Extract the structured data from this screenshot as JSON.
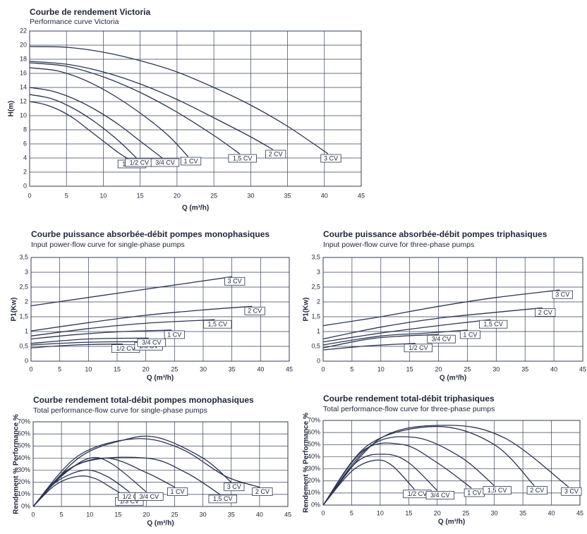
{
  "chart_data": [
    {
      "type": "line",
      "title": "Courbe de rendement Victoria",
      "subtitle": "Performance curve Victoria",
      "xlabel": "Q (m³/h)",
      "ylabel": "H(m)",
      "xlim": [
        0,
        45
      ],
      "ylim": [
        0,
        22
      ],
      "xticks": [
        0,
        5,
        10,
        15,
        20,
        25,
        30,
        35,
        40,
        45
      ],
      "yticks": [
        0,
        2,
        4,
        6,
        8,
        10,
        12,
        14,
        16,
        18,
        20,
        22
      ],
      "grid": true,
      "color": "#2b3552",
      "series": [
        {
          "name": "1/3 CV",
          "x": [
            0,
            2,
            4,
            6,
            8,
            10,
            12,
            13.5
          ],
          "values": [
            12,
            11.6,
            10.8,
            9.6,
            8,
            6.4,
            4.8,
            3.8
          ]
        },
        {
          "name": "1/2 CV",
          "x": [
            0,
            3,
            6,
            9,
            12,
            14.5
          ],
          "values": [
            13,
            12.4,
            11,
            9,
            6.5,
            4
          ]
        },
        {
          "name": "3/4 CV",
          "x": [
            0,
            3,
            6,
            9,
            12,
            15,
            18
          ],
          "values": [
            14,
            13.5,
            12.4,
            10.8,
            8.8,
            6.4,
            4
          ]
        },
        {
          "name": "1 CV",
          "x": [
            0,
            4,
            8,
            12,
            16,
            19,
            21.5
          ],
          "values": [
            16.8,
            16.3,
            14.8,
            12.5,
            9.6,
            7,
            4.2
          ]
        },
        {
          "name": "1,5 CV",
          "x": [
            0,
            5,
            10,
            15,
            20,
            25,
            28.5
          ],
          "values": [
            17.5,
            17,
            15.5,
            13.3,
            10.5,
            7.2,
            4.6
          ]
        },
        {
          "name": "2 CV",
          "x": [
            0,
            5,
            10,
            15,
            20,
            25,
            30,
            33
          ],
          "values": [
            17.7,
            17.3,
            16.2,
            14.5,
            12.3,
            9.7,
            7,
            5.2
          ]
        },
        {
          "name": "3 CV",
          "x": [
            0,
            5,
            10,
            15,
            20,
            25,
            30,
            35,
            40.5
          ],
          "values": [
            19.8,
            19.7,
            19,
            17.8,
            16.2,
            14,
            11.5,
            8.5,
            4.6
          ]
        }
      ]
    },
    {
      "type": "line",
      "title": "Courbe puissance absorbée-débit pompes monophasiques",
      "subtitle": "Input power-flow curve for single-phase pumps",
      "xlabel": "Q (m³/h)",
      "ylabel": "P1(Kw)",
      "xlim": [
        0,
        45
      ],
      "ylim": [
        0,
        3.5
      ],
      "xticks": [
        0,
        5,
        10,
        15,
        20,
        25,
        30,
        35,
        40,
        45
      ],
      "yticks": [
        0,
        {
          "value": 0.5,
          "label": "0,5"
        },
        1,
        {
          "value": 1.5,
          "label": "1,5"
        },
        2,
        {
          "value": 2.5,
          "label": "2,5"
        },
        3,
        {
          "value": 3.5,
          "label": "3,5"
        }
      ],
      "grid": true,
      "color": "#2b3552",
      "series": [
        {
          "name": "1/2 CV",
          "x": [
            0,
            8,
            16
          ],
          "values": [
            0.45,
            0.55,
            0.58
          ]
        },
        {
          "name": "1/3 CV",
          "x": [
            0,
            10,
            20
          ],
          "values": [
            0.55,
            0.64,
            0.66
          ]
        },
        {
          "name": "3/4 CV",
          "x": [
            0,
            10,
            20.5
          ],
          "values": [
            0.6,
            0.75,
            0.78
          ]
        },
        {
          "name": "1 CV",
          "x": [
            0,
            8,
            16,
            24.5
          ],
          "values": [
            0.75,
            0.9,
            1,
            1.05
          ]
        },
        {
          "name": "1,5 CV",
          "x": [
            0,
            10,
            20,
            32
          ],
          "values": [
            0.85,
            1.1,
            1.28,
            1.4
          ]
        },
        {
          "name": "2 CV",
          "x": [
            0,
            10,
            20,
            30,
            38.5
          ],
          "values": [
            1.02,
            1.3,
            1.55,
            1.73,
            1.85
          ]
        },
        {
          "name": "3 CV",
          "x": [
            0,
            35
          ],
          "values": [
            1.87,
            2.85
          ]
        }
      ]
    },
    {
      "type": "line",
      "title": "Courbe puissance absorbée-débit pompes triphasiques",
      "subtitle": "Input power-flow curve for three-phase pumps",
      "xlabel": "Q (m³/h)",
      "ylabel": "P1(Kw)",
      "xlim": [
        0,
        45
      ],
      "ylim": [
        0,
        3.5
      ],
      "xticks": [
        0,
        5,
        10,
        15,
        20,
        25,
        30,
        35,
        40,
        45
      ],
      "yticks": [
        0,
        {
          "value": 0.5,
          "label": "0,5"
        },
        1,
        {
          "value": 1.5,
          "label": "1,5"
        },
        2,
        {
          "value": 2.5,
          "label": "2,5"
        },
        3,
        {
          "value": 3.5,
          "label": "3,5"
        }
      ],
      "grid": true,
      "color": "#2b3552",
      "series": [
        {
          "name": "1/2 CV",
          "x": [
            0,
            8,
            16
          ],
          "values": [
            0.38,
            0.52,
            0.6
          ]
        },
        {
          "name": "3/4 CV",
          "x": [
            0,
            8,
            14,
            20
          ],
          "values": [
            0.45,
            0.75,
            0.85,
            0.9
          ]
        },
        {
          "name": "1 CV",
          "x": [
            0,
            10,
            18,
            25
          ],
          "values": [
            0.55,
            0.85,
            0.95,
            1.05
          ]
        },
        {
          "name": "1,5 CV",
          "x": [
            0,
            10,
            20,
            29
          ],
          "values": [
            0.65,
            0.95,
            1.2,
            1.4
          ]
        },
        {
          "name": "2 CV",
          "x": [
            0,
            10,
            20,
            30,
            38
          ],
          "values": [
            0.75,
            1.15,
            1.45,
            1.65,
            1.8
          ]
        },
        {
          "name": "3 CV",
          "x": [
            0,
            10,
            20,
            30,
            41
          ],
          "values": [
            1.2,
            1.5,
            1.85,
            2.15,
            2.4
          ]
        }
      ]
    },
    {
      "type": "line",
      "title": "Courbe rendement total-débit pompes monophasiques",
      "subtitle": "Total performance-flow curve for single-phase pumps",
      "xlabel": "Q (m³/h)",
      "ylabel": "Rendement % Performance %",
      "xlim": [
        0,
        45
      ],
      "ylim": [
        0,
        70
      ],
      "xticks": [
        0,
        5,
        10,
        15,
        20,
        25,
        30,
        35,
        40,
        45
      ],
      "yticks": [
        {
          "value": 0,
          "label": "0%"
        },
        {
          "value": 10,
          "label": "10%"
        },
        {
          "value": 20,
          "label": "20%"
        },
        {
          "value": 30,
          "label": "30%"
        },
        {
          "value": 40,
          "label": "40%"
        },
        {
          "value": 50,
          "label": "50%"
        },
        {
          "value": 60,
          "label": "60%"
        },
        {
          "value": 70,
          "label": "70%"
        }
      ],
      "grid": true,
      "color": "#2b3552",
      "series": [
        {
          "name": "1/3 CV",
          "x": [
            0,
            4,
            8,
            11,
            14,
            16.5
          ],
          "values": [
            0,
            18,
            25,
            23,
            15,
            8
          ]
        },
        {
          "name": "1/2 CV",
          "x": [
            0,
            4,
            9,
            13,
            17
          ],
          "values": [
            0,
            20,
            30,
            25,
            12
          ]
        },
        {
          "name": "3/4 CV",
          "x": [
            0,
            5,
            10,
            14,
            20
          ],
          "values": [
            0,
            25,
            40,
            35,
            12
          ]
        },
        {
          "name": "1 CV",
          "x": [
            0,
            6,
            13,
            20,
            25
          ],
          "values": [
            0,
            30,
            40,
            28,
            16
          ]
        },
        {
          "name": "1,5 CV",
          "x": [
            0,
            8,
            20,
            27,
            33
          ],
          "values": [
            0,
            35,
            40,
            28,
            10
          ]
        },
        {
          "name": "3 CV",
          "x": [
            0,
            8,
            16,
            22,
            30,
            35
          ],
          "values": [
            0,
            40,
            55,
            57,
            40,
            20
          ]
        },
        {
          "name": "2 CV",
          "x": [
            0,
            8,
            18,
            26,
            34,
            40
          ],
          "values": [
            0,
            42,
            56,
            48,
            25,
            16
          ]
        }
      ]
    },
    {
      "type": "line",
      "title": "Courbe rendement total-débit triphasiques",
      "subtitle": "Total performance-flow curve for three-phase pumps",
      "xlabel": "Q (m³/h)",
      "ylabel": "Rendement % Performance %",
      "xlim": [
        0,
        45
      ],
      "ylim": [
        0,
        70
      ],
      "xticks": [
        0,
        5,
        10,
        15,
        20,
        25,
        30,
        35,
        40,
        45
      ],
      "yticks": [
        {
          "value": 0,
          "label": "0%"
        },
        {
          "value": 10,
          "label": "10%"
        },
        {
          "value": 20,
          "label": "20%"
        },
        {
          "value": 30,
          "label": "30%"
        },
        {
          "value": 40,
          "label": "40%"
        },
        {
          "value": 50,
          "label": "50%"
        },
        {
          "value": 60,
          "label": "60%"
        },
        {
          "value": 70,
          "label": "70%"
        }
      ],
      "grid": true,
      "color": "#2b3552",
      "series": [
        {
          "name": "1/2 CV",
          "x": [
            0,
            5,
            9,
            12,
            16
          ],
          "values": [
            0,
            28,
            37,
            33,
            13
          ]
        },
        {
          "name": "3/4 CV",
          "x": [
            0,
            6,
            11,
            15,
            20
          ],
          "values": [
            0,
            36,
            42,
            35,
            12
          ]
        },
        {
          "name": "1 CV",
          "x": [
            0,
            7,
            14,
            20,
            26
          ],
          "values": [
            0,
            45,
            50,
            35,
            14
          ]
        },
        {
          "name": "1,5 CV",
          "x": [
            0,
            8,
            16,
            24,
            30
          ],
          "values": [
            0,
            48,
            56,
            40,
            16
          ]
        },
        {
          "name": "2 CV",
          "x": [
            0,
            8,
            20,
            30,
            37
          ],
          "values": [
            0,
            50,
            65,
            50,
            16
          ]
        },
        {
          "name": "3 CV",
          "x": [
            0,
            10,
            22,
            32,
            43
          ],
          "values": [
            0,
            55,
            66,
            55,
            15
          ]
        }
      ]
    }
  ]
}
